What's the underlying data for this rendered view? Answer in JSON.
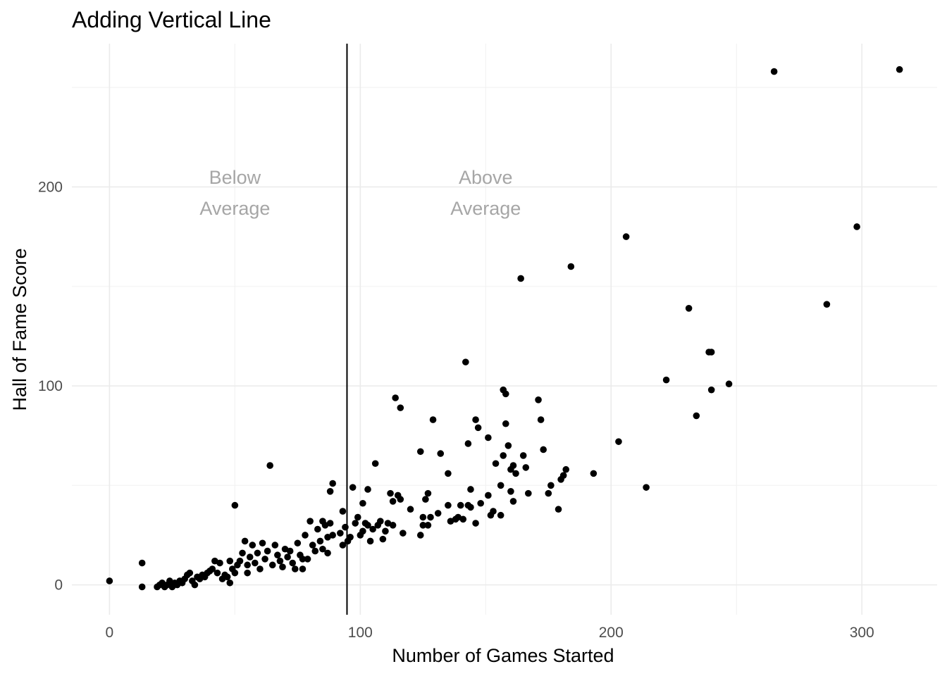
{
  "chart_data": {
    "type": "scatter",
    "title": "Adding Vertical Line",
    "xlabel": "Number of Games Started",
    "ylabel": "Hall of Fame Score",
    "xlim": [
      -15,
      330
    ],
    "ylim": [
      -15,
      272
    ],
    "x_ticks": [
      0,
      100,
      200,
      300
    ],
    "y_ticks": [
      0,
      100,
      200
    ],
    "x_tick_labels": [
      "0",
      "100",
      "200",
      "300"
    ],
    "y_tick_labels": [
      "0",
      "100",
      "200"
    ],
    "x_minor_ticks": [
      50,
      150,
      250
    ],
    "y_minor_ticks": [
      50,
      150,
      250
    ],
    "grid": true,
    "vline": {
      "x": 94.7,
      "color": "#000000"
    },
    "annotations": [
      {
        "x": 50,
        "y": 198,
        "lines": [
          "Below",
          "Average"
        ],
        "color": "#a6a6a6"
      },
      {
        "x": 150,
        "y": 198,
        "lines": [
          "Above",
          "Average"
        ],
        "color": "#a6a6a6"
      }
    ],
    "point_color": "#000000",
    "points": [
      [
        0,
        2
      ],
      [
        13,
        -1
      ],
      [
        13,
        11
      ],
      [
        19,
        -1
      ],
      [
        20,
        0
      ],
      [
        21,
        1
      ],
      [
        22,
        -1
      ],
      [
        23,
        0
      ],
      [
        24,
        2
      ],
      [
        25,
        -1
      ],
      [
        26,
        1
      ],
      [
        27,
        0
      ],
      [
        28,
        2
      ],
      [
        29,
        1
      ],
      [
        30,
        3
      ],
      [
        31,
        5
      ],
      [
        32,
        6
      ],
      [
        33,
        2
      ],
      [
        34,
        0
      ],
      [
        35,
        4
      ],
      [
        36,
        3
      ],
      [
        37,
        5
      ],
      [
        38,
        4
      ],
      [
        39,
        6
      ],
      [
        40,
        7
      ],
      [
        41,
        8
      ],
      [
        42,
        12
      ],
      [
        43,
        6
      ],
      [
        44,
        11
      ],
      [
        45,
        3
      ],
      [
        46,
        5
      ],
      [
        47,
        4
      ],
      [
        48,
        1
      ],
      [
        48,
        12
      ],
      [
        49,
        8
      ],
      [
        50,
        6
      ],
      [
        50,
        40
      ],
      [
        51,
        10
      ],
      [
        52,
        12
      ],
      [
        53,
        16
      ],
      [
        54,
        22
      ],
      [
        55,
        10
      ],
      [
        55,
        6
      ],
      [
        56,
        14
      ],
      [
        57,
        20
      ],
      [
        58,
        11
      ],
      [
        59,
        16
      ],
      [
        60,
        8
      ],
      [
        61,
        21
      ],
      [
        62,
        13
      ],
      [
        63,
        17
      ],
      [
        64,
        60
      ],
      [
        65,
        10
      ],
      [
        66,
        20
      ],
      [
        67,
        15
      ],
      [
        68,
        12
      ],
      [
        69,
        9
      ],
      [
        70,
        18
      ],
      [
        71,
        14
      ],
      [
        72,
        17
      ],
      [
        73,
        11
      ],
      [
        74,
        8
      ],
      [
        75,
        21
      ],
      [
        76,
        15
      ],
      [
        77,
        13
      ],
      [
        77,
        8
      ],
      [
        78,
        25
      ],
      [
        79,
        13
      ],
      [
        80,
        32
      ],
      [
        81,
        20
      ],
      [
        82,
        17
      ],
      [
        83,
        28
      ],
      [
        84,
        22
      ],
      [
        85,
        32
      ],
      [
        85,
        18
      ],
      [
        86,
        30
      ],
      [
        87,
        24
      ],
      [
        87,
        16
      ],
      [
        88,
        31
      ],
      [
        88,
        47
      ],
      [
        89,
        25
      ],
      [
        89,
        51
      ],
      [
        92,
        26
      ],
      [
        93,
        20
      ],
      [
        93,
        37
      ],
      [
        94,
        29
      ],
      [
        95,
        22
      ],
      [
        96,
        24
      ],
      [
        97,
        49
      ],
      [
        98,
        31
      ],
      [
        99,
        34
      ],
      [
        100,
        25
      ],
      [
        101,
        27
      ],
      [
        101,
        41
      ],
      [
        102,
        31
      ],
      [
        103,
        30
      ],
      [
        103,
        48
      ],
      [
        104,
        22
      ],
      [
        105,
        28
      ],
      [
        106,
        61
      ],
      [
        107,
        30
      ],
      [
        108,
        32
      ],
      [
        109,
        23
      ],
      [
        110,
        27
      ],
      [
        111,
        31
      ],
      [
        112,
        46
      ],
      [
        113,
        30
      ],
      [
        113,
        42
      ],
      [
        114,
        94
      ],
      [
        115,
        45
      ],
      [
        116,
        89
      ],
      [
        116,
        43
      ],
      [
        117,
        26
      ],
      [
        120,
        38
      ],
      [
        124,
        25
      ],
      [
        124,
        67
      ],
      [
        125,
        30
      ],
      [
        125,
        34
      ],
      [
        126,
        43
      ],
      [
        127,
        30
      ],
      [
        127,
        46
      ],
      [
        128,
        34
      ],
      [
        129,
        83
      ],
      [
        131,
        36
      ],
      [
        132,
        66
      ],
      [
        135,
        56
      ],
      [
        135,
        40
      ],
      [
        136,
        32
      ],
      [
        138,
        33
      ],
      [
        139,
        34
      ],
      [
        140,
        40
      ],
      [
        141,
        33
      ],
      [
        142,
        112
      ],
      [
        143,
        40
      ],
      [
        143,
        71
      ],
      [
        144,
        48
      ],
      [
        144,
        39
      ],
      [
        146,
        83
      ],
      [
        146,
        31
      ],
      [
        147,
        79
      ],
      [
        148,
        41
      ],
      [
        151,
        74
      ],
      [
        151,
        45
      ],
      [
        152,
        35
      ],
      [
        153,
        37
      ],
      [
        154,
        61
      ],
      [
        156,
        35
      ],
      [
        156,
        50
      ],
      [
        157,
        98
      ],
      [
        157,
        65
      ],
      [
        158,
        81
      ],
      [
        158,
        96
      ],
      [
        159,
        70
      ],
      [
        160,
        47
      ],
      [
        160,
        58
      ],
      [
        161,
        42
      ],
      [
        161,
        60
      ],
      [
        162,
        56
      ],
      [
        164,
        154
      ],
      [
        165,
        65
      ],
      [
        166,
        59
      ],
      [
        167,
        46
      ],
      [
        171,
        93
      ],
      [
        172,
        83
      ],
      [
        173,
        68
      ],
      [
        175,
        46
      ],
      [
        176,
        50
      ],
      [
        179,
        38
      ],
      [
        180,
        53
      ],
      [
        181,
        55
      ],
      [
        182,
        58
      ],
      [
        184,
        160
      ],
      [
        193,
        56
      ],
      [
        203,
        72
      ],
      [
        206,
        175
      ],
      [
        214,
        49
      ],
      [
        222,
        103
      ],
      [
        231,
        139
      ],
      [
        234,
        85
      ],
      [
        239,
        117
      ],
      [
        240,
        117
      ],
      [
        240,
        98
      ],
      [
        247,
        101
      ],
      [
        265,
        258
      ],
      [
        286,
        141
      ],
      [
        298,
        180
      ],
      [
        315,
        259
      ]
    ]
  }
}
